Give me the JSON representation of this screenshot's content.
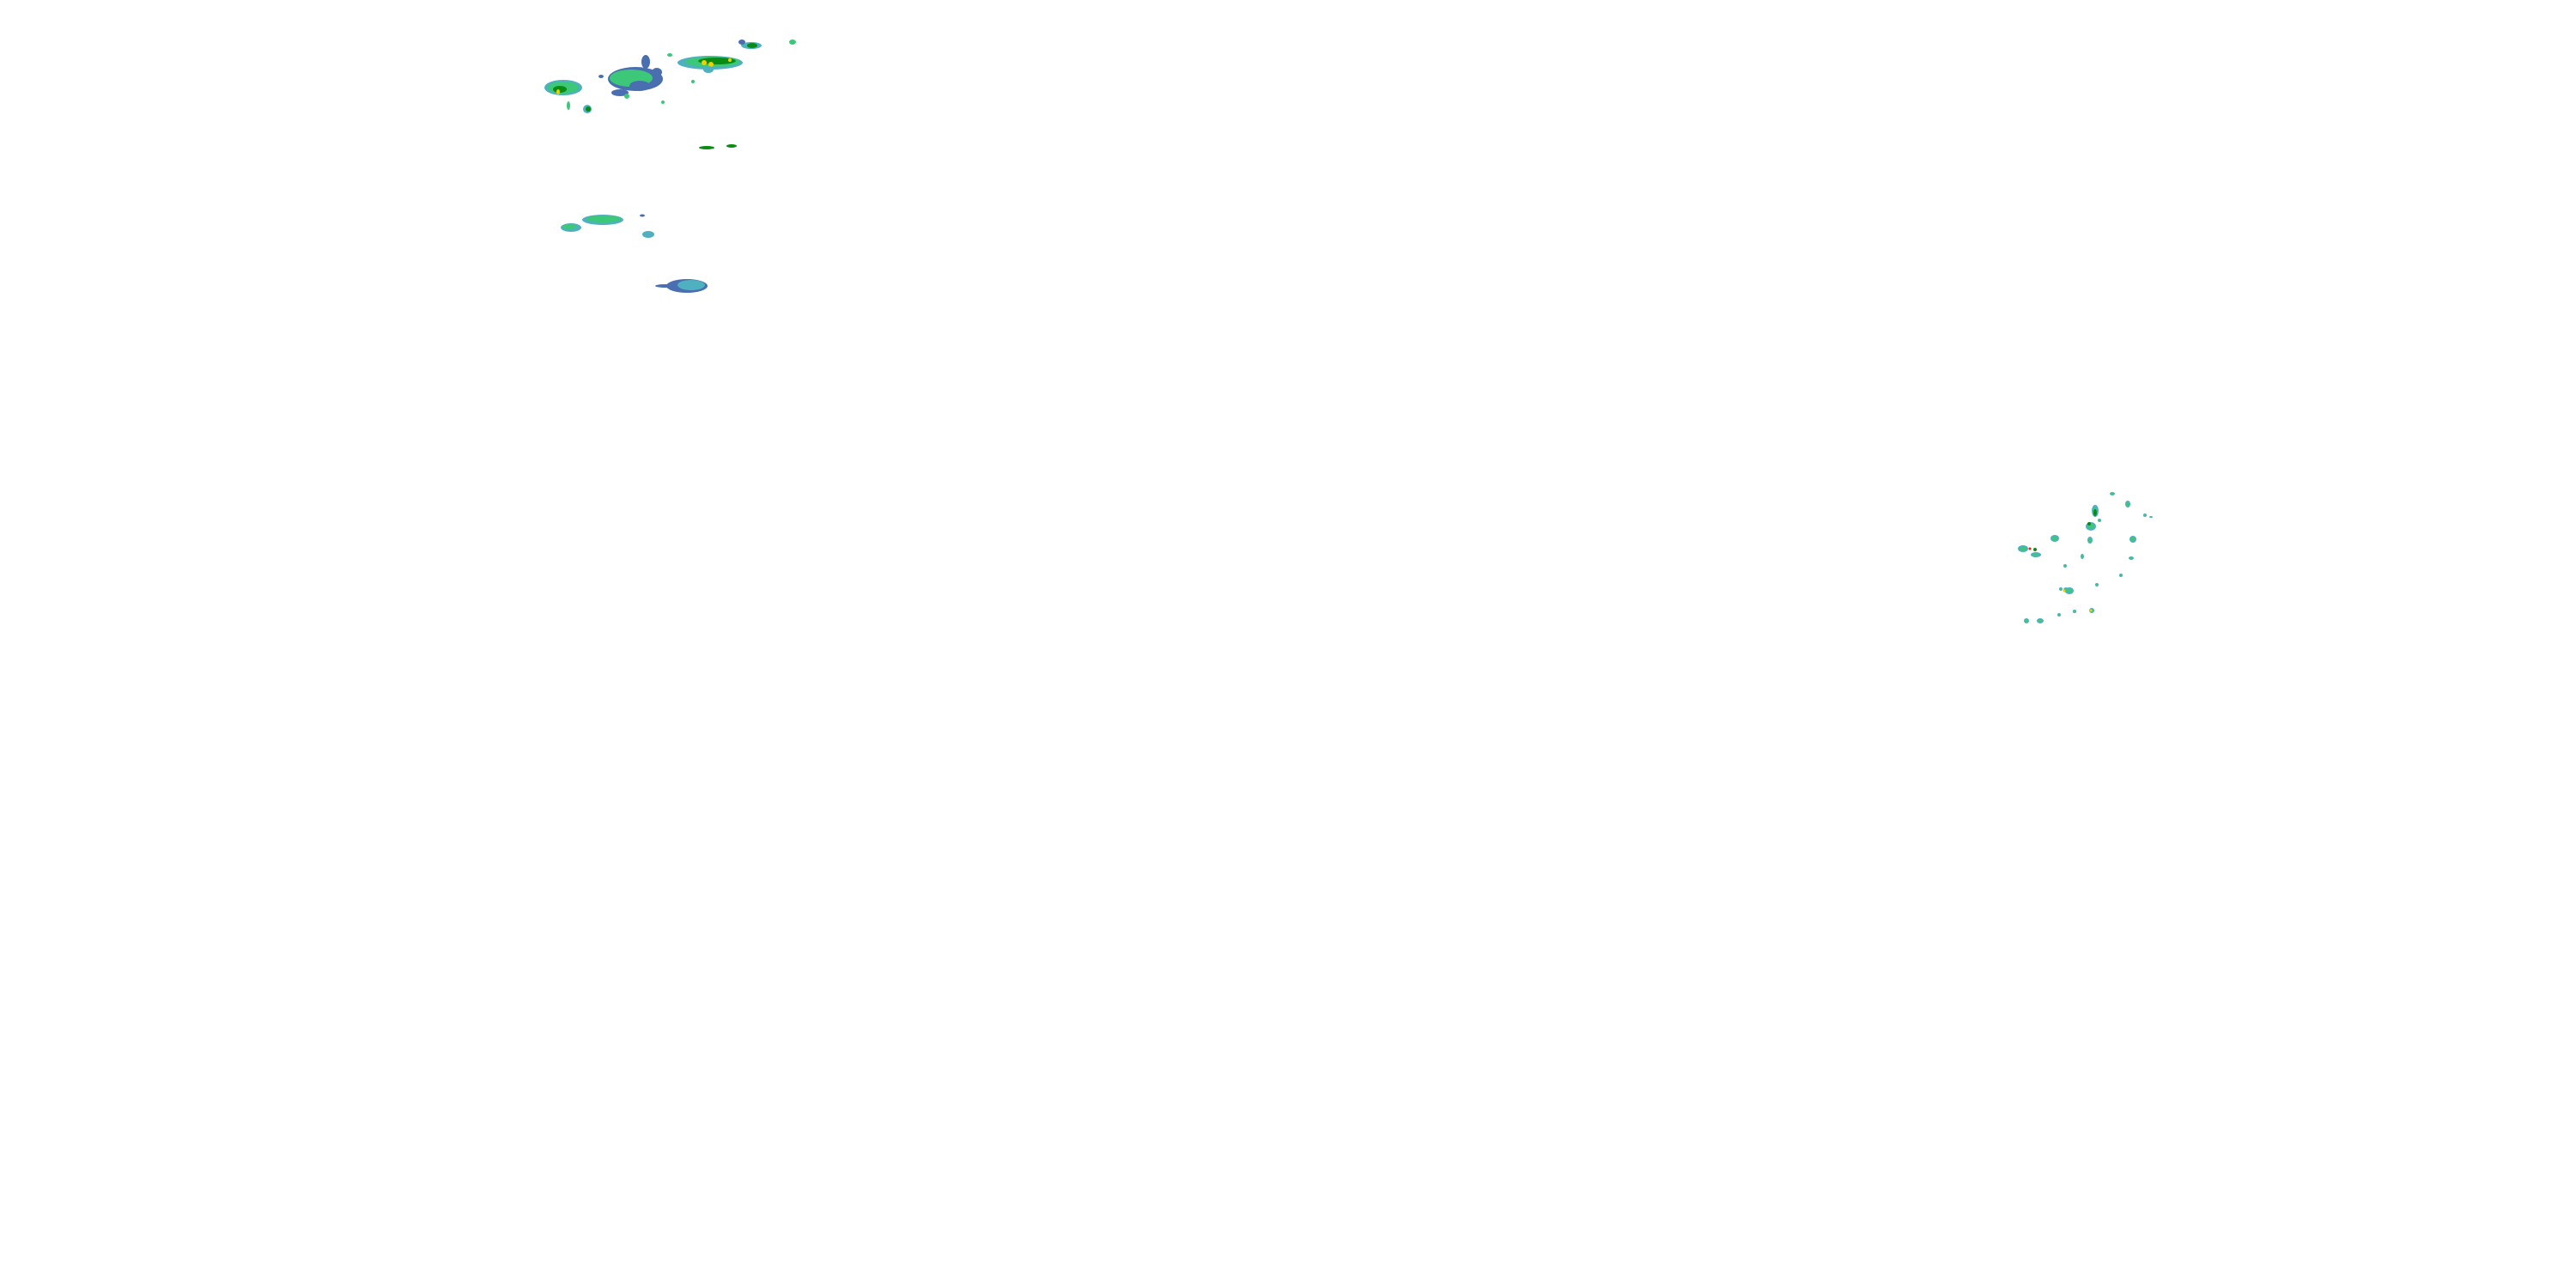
{
  "map": {
    "layer": "precipitation-radar-overlay",
    "colors": {
      "light": "#4a6fb0",
      "light_cyan": "#4fb0c0",
      "moderate": "#3cc878",
      "heavy": "#0a8c14",
      "intense": "#f0d000",
      "extreme": "#e02010"
    }
  }
}
